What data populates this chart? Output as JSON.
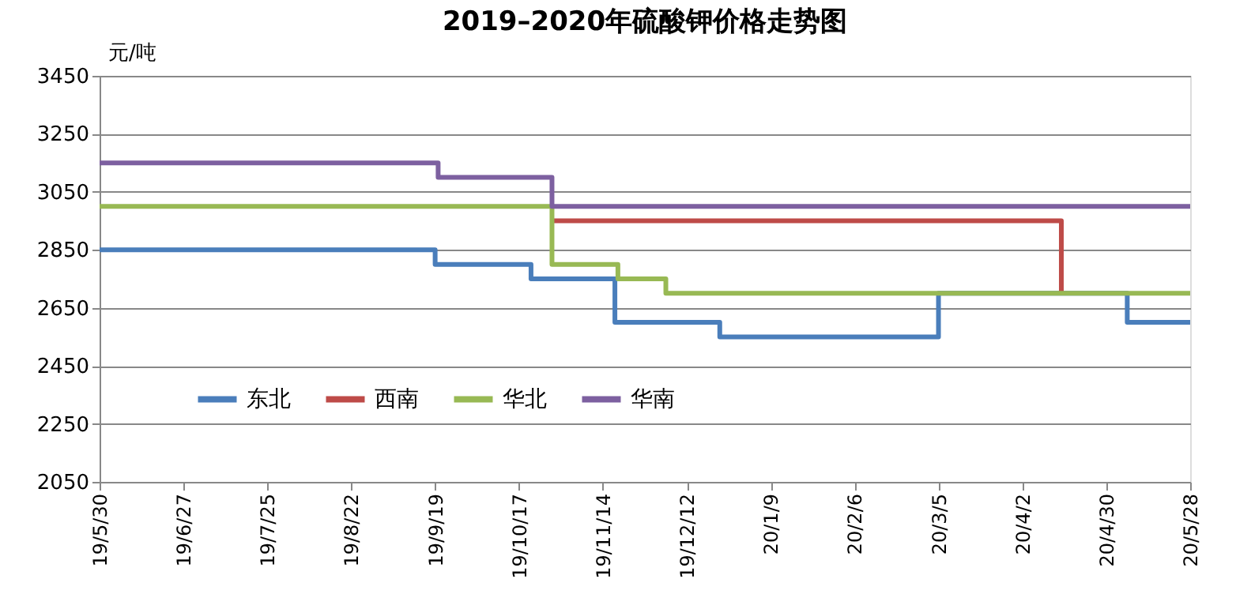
{
  "chart_data": {
    "type": "step",
    "title": "2019–2020年硫酸钾价格走势图",
    "ylabel": "元/吨",
    "ylim": [
      2050,
      3450
    ],
    "yticks": [
      2050,
      2250,
      2450,
      2650,
      2850,
      3050,
      3250,
      3450
    ],
    "xlim": [
      "2019-05-30",
      "2020-05-28"
    ],
    "xticks": [
      {
        "value": "2019-05-30",
        "label": "19/5/30"
      },
      {
        "value": "2019-06-27",
        "label": "19/6/27"
      },
      {
        "value": "2019-07-25",
        "label": "19/7/25"
      },
      {
        "value": "2019-08-22",
        "label": "19/8/22"
      },
      {
        "value": "2019-09-19",
        "label": "19/9/19"
      },
      {
        "value": "2019-10-17",
        "label": "19/10/17"
      },
      {
        "value": "2019-11-14",
        "label": "19/11/14"
      },
      {
        "value": "2019-12-12",
        "label": "19/12/12"
      },
      {
        "value": "2020-01-09",
        "label": "20/1/9"
      },
      {
        "value": "2020-02-06",
        "label": "20/2/6"
      },
      {
        "value": "2020-03-05",
        "label": "20/3/5"
      },
      {
        "value": "2020-04-02",
        "label": "20/4/2"
      },
      {
        "value": "2020-04-30",
        "label": "20/4/30"
      },
      {
        "value": "2020-05-28",
        "label": "20/5/28"
      }
    ],
    "grid": "y",
    "legend": "bottom left",
    "marker": "none",
    "line_style": "solid",
    "series": [
      {
        "name": "东北",
        "color": "#4a7ebb",
        "x": [
          "2019-05-30",
          "2019-09-19",
          "2019-10-21",
          "2019-11-18",
          "2019-12-23",
          "2020-03-05",
          "2020-05-07",
          "2020-05-28"
        ],
        "values": [
          2850,
          2800,
          2750,
          2600,
          2550,
          2700,
          2600,
          2600
        ]
      },
      {
        "name": "西南",
        "color": "#be4b48",
        "x": [
          "2019-10-28",
          "2020-04-15"
        ],
        "values": [
          2950,
          2700
        ]
      },
      {
        "name": "华北",
        "color": "#98b954",
        "x": [
          "2019-05-30",
          "2019-10-28",
          "2019-11-19",
          "2019-12-05",
          "2020-05-28"
        ],
        "values": [
          3000,
          2800,
          2750,
          2700,
          2700
        ]
      },
      {
        "name": "华南",
        "color": "#7d60a0",
        "x": [
          "2019-05-30",
          "2019-09-20",
          "2019-10-28",
          "2020-05-28"
        ],
        "values": [
          3150,
          3100,
          3000,
          3000
        ]
      }
    ]
  }
}
